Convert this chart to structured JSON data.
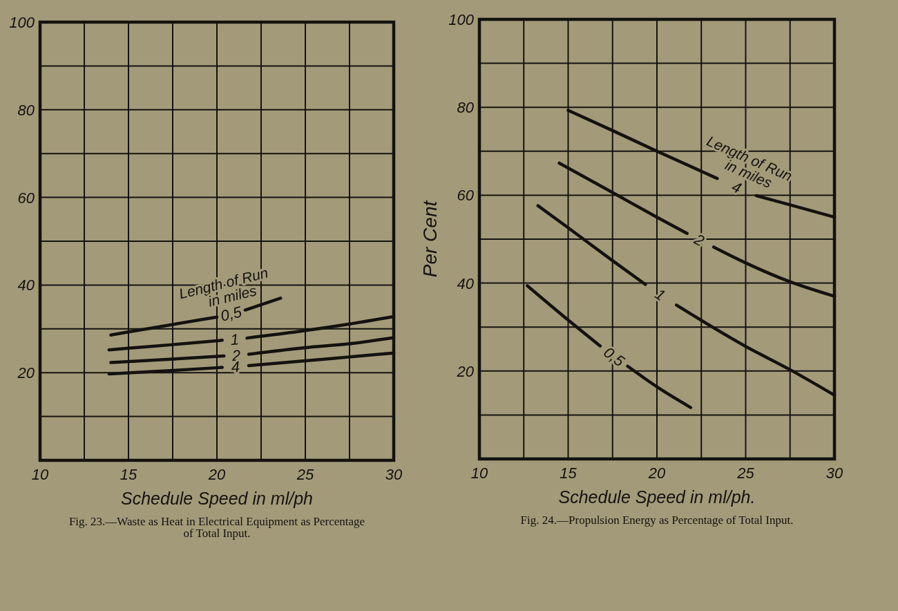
{
  "chart_data": [
    {
      "type": "line",
      "xlabel": "Schedule Speed in ml/ph",
      "legend_title": "Length of Run in miles",
      "annotations": [
        "Fig. 23.—Waste as Heat in Electrical Equipment as Percentage of Total Input."
      ],
      "xlim": [
        10,
        30
      ],
      "ylim": [
        0,
        100
      ],
      "xticks": [
        10,
        {
          "value": 12.5,
          "label": null
        },
        15,
        {
          "value": 17.5,
          "label": null
        },
        20,
        {
          "value": 22.5,
          "label": null
        },
        25,
        {
          "value": 27.5,
          "label": null
        },
        30
      ],
      "yticks": [
        {
          "value": 0,
          "label": null
        },
        {
          "value": 10,
          "label": null
        },
        20,
        {
          "value": 30,
          "label": null
        },
        40,
        {
          "value": 50,
          "label": null
        },
        60,
        {
          "value": 70,
          "label": null
        },
        80,
        {
          "value": 90,
          "label": null
        },
        100
      ],
      "grid": true,
      "series": [
        {
          "name": "0,5",
          "color": "#141210",
          "x": [
            14,
            15,
            17.5,
            20,
            20.8,
            21.6,
            23.6
          ],
          "values": [
            28.6,
            29.3,
            31.0,
            32.7,
            null,
            34.3,
            37.0
          ]
        },
        {
          "name": "1",
          "color": "#141210",
          "x": [
            13.9,
            15,
            17.5,
            20.3,
            21,
            21.7,
            25,
            27.5,
            30
          ],
          "values": [
            25.2,
            25.6,
            26.4,
            27.4,
            null,
            27.9,
            29.6,
            31.1,
            32.8
          ]
        },
        {
          "name": "2",
          "color": "#141210",
          "x": [
            14,
            17.5,
            20.4,
            21.1,
            21.8,
            25,
            27.5,
            30
          ],
          "values": [
            22.3,
            23.1,
            23.8,
            null,
            24.2,
            25.7,
            26.6,
            28.0
          ]
        },
        {
          "name": "4",
          "color": "#141210",
          "x": [
            13.9,
            17.5,
            20.3,
            21.05,
            21.8,
            25,
            27.5,
            30
          ],
          "values": [
            19.7,
            20.5,
            21.2,
            null,
            21.6,
            22.7,
            23.6,
            24.5
          ]
        }
      ]
    },
    {
      "type": "line",
      "xlabel": "Schedule Speed in ml/ph.",
      "ylabel": "Per Cent",
      "legend_title": "Length of Run in miles",
      "annotations": [
        "Fig. 24.—Propulsion Energy as Percentage of Total Input."
      ],
      "xlim": [
        10,
        30
      ],
      "ylim": [
        0,
        100
      ],
      "xticks": [
        10,
        {
          "value": 12.5,
          "label": null
        },
        15,
        {
          "value": 17.5,
          "label": null
        },
        20,
        {
          "value": 22.5,
          "label": null
        },
        25,
        {
          "value": 27.5,
          "label": null
        },
        30
      ],
      "yticks": [
        {
          "value": 0,
          "label": null
        },
        {
          "value": 10,
          "label": null
        },
        20,
        {
          "value": 30,
          "label": null
        },
        40,
        {
          "value": 50,
          "label": null
        },
        60,
        {
          "value": 70,
          "label": null
        },
        80,
        {
          "value": 90,
          "label": null
        },
        100
      ],
      "grid": true,
      "series": [
        {
          "name": "0,5",
          "color": "#141210",
          "x": [
            12.7,
            15,
            16.8,
            17.6,
            18.35,
            20,
            21.9
          ],
          "values": [
            39.4,
            31.6,
            25.7,
            null,
            21.1,
            16.4,
            11.7
          ]
        },
        {
          "name": "1",
          "color": "#141210",
          "x": [
            13.3,
            15,
            17.5,
            19.35,
            20.2,
            21.1,
            25,
            27.5,
            30
          ],
          "values": [
            57.6,
            52.6,
            45.1,
            39.7,
            null,
            35.0,
            25.6,
            20.3,
            14.5
          ]
        },
        {
          "name": "2",
          "color": "#141210",
          "x": [
            14.5,
            17.5,
            20,
            21.7,
            22.4,
            23.2,
            25,
            27.5,
            30
          ],
          "values": [
            67.3,
            60.6,
            55.0,
            51.3,
            null,
            48.2,
            44.6,
            40.3,
            37.0
          ]
        },
        {
          "name": "4",
          "color": "#141210",
          "x": [
            15,
            17.5,
            20,
            23.4,
            24.5,
            25.6,
            27.5,
            30
          ],
          "values": [
            79.3,
            74.7,
            70.0,
            63.8,
            null,
            59.9,
            57.8,
            55.0
          ]
        }
      ]
    }
  ]
}
